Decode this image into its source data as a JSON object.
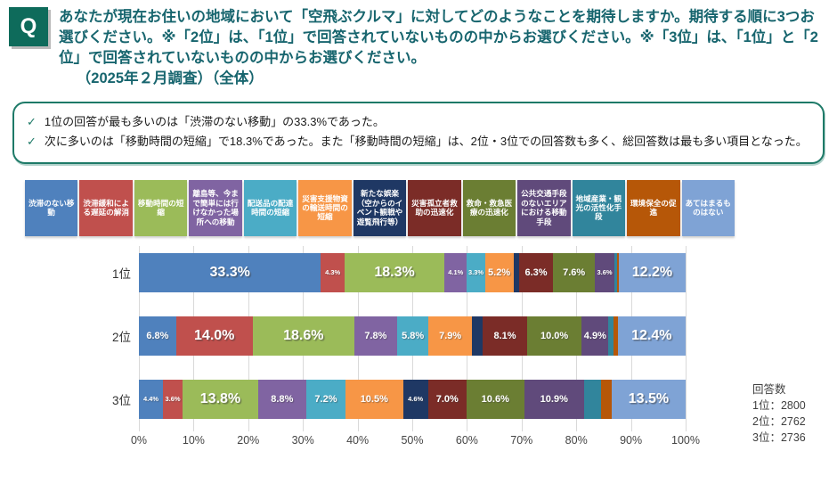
{
  "theme": {
    "qbox": "#0E6B5B",
    "title": "#17656E",
    "border": "#1E7A68",
    "check": "#1E7A68",
    "grid": "#D9D9D9"
  },
  "header": {
    "q_label": "Q",
    "question": "あなたが現在お住いの地域において「空飛ぶクルマ」に対してどのようなことを期待しますか。期待する順に3つお選びください。※「2位」は、「1位」で回答されていないものの中からお選びください。※「3位」は、「1位」と「2位」で回答されていないものの中からお選びください。",
    "survey_note": "（2025年２月調査）（全体）"
  },
  "summary": {
    "bullets": [
      "1位の回答が最も多いのは「渋滞のない移動」の33.3%であった。",
      "次に多いのは「移動時間の短縮」で18.3%であった。また「移動時間の短縮」は、2位・3位での回答数も多く、総回答数は最も多い項目となった。"
    ]
  },
  "respondents": {
    "title": "回答数",
    "lines": [
      "1位：2800",
      "2位：2762",
      "3位：2736"
    ]
  },
  "chart_data": {
    "type": "bar",
    "subtype": "horizontal-stacked-100pct",
    "unit": "%",
    "legend_position": "top",
    "grid": true,
    "xlim": [
      0,
      100
    ],
    "x_ticks": [
      "0%",
      "10%",
      "20%",
      "30%",
      "40%",
      "50%",
      "60%",
      "70%",
      "80%",
      "90%",
      "100%"
    ],
    "categories": [
      "渋滞のない移動",
      "渋滞緩和による遅延の解消",
      "移動時間の短縮",
      "離島等、今まで簡単には行けなかった場所への移動",
      "配送品の配達時間の短縮",
      "災害支援物資の輸送時間の短縮",
      "新たな娯楽（空からのイベント観戦や遊覧飛行等）",
      "災害孤立者救助の迅速化",
      "救命・救急医療の迅速化",
      "公共交通手段のないエリアにおける移動手段",
      "地域産業・観光の活性化手段",
      "環境保全の促進",
      "あてはまるものはない"
    ],
    "colors": [
      "#4F81BD",
      "#C0504D",
      "#9BBB59",
      "#8064A2",
      "#4BACC6",
      "#F79646",
      "#1F3864",
      "#7B2C27",
      "#6B7E33",
      "#604A7B",
      "#31859C",
      "#B65708",
      "#7FA3D5"
    ],
    "note": "values without visible data labels are estimated from segment widths; labels array holds the text shown in the chart (null = no label shown)",
    "rows": [
      {
        "name": "1位",
        "values": [
          33.3,
          4.3,
          18.3,
          4.1,
          3.3,
          5.2,
          1.0,
          6.3,
          7.6,
          3.6,
          0.5,
          0.3,
          12.2
        ],
        "labels": [
          "33.3%",
          "4.3%",
          "18.3%",
          "4.1%",
          "3.3%",
          "5.2%",
          null,
          "6.3%",
          "7.6%",
          "3.6%",
          null,
          null,
          "12.2%"
        ]
      },
      {
        "name": "2位",
        "values": [
          6.8,
          14.0,
          18.6,
          7.8,
          5.8,
          7.9,
          2.0,
          8.1,
          10.0,
          4.9,
          0.9,
          0.8,
          12.4
        ],
        "labels": [
          "6.8%",
          "14.0%",
          "18.6%",
          "7.8%",
          "5.8%",
          "7.9%",
          null,
          "8.1%",
          "10.0%",
          "4.9%",
          null,
          null,
          "12.4%"
        ]
      },
      {
        "name": "3位",
        "values": [
          4.4,
          3.6,
          13.8,
          8.8,
          7.2,
          10.5,
          4.6,
          7.0,
          10.6,
          10.9,
          3.2,
          1.9,
          13.5
        ],
        "labels": [
          "4.4%",
          "3.6%",
          "13.8%",
          "8.8%",
          "7.2%",
          "10.5%",
          "4.6%",
          "7.0%",
          "10.6%",
          "10.9%",
          null,
          null,
          "13.5%"
        ]
      }
    ]
  }
}
